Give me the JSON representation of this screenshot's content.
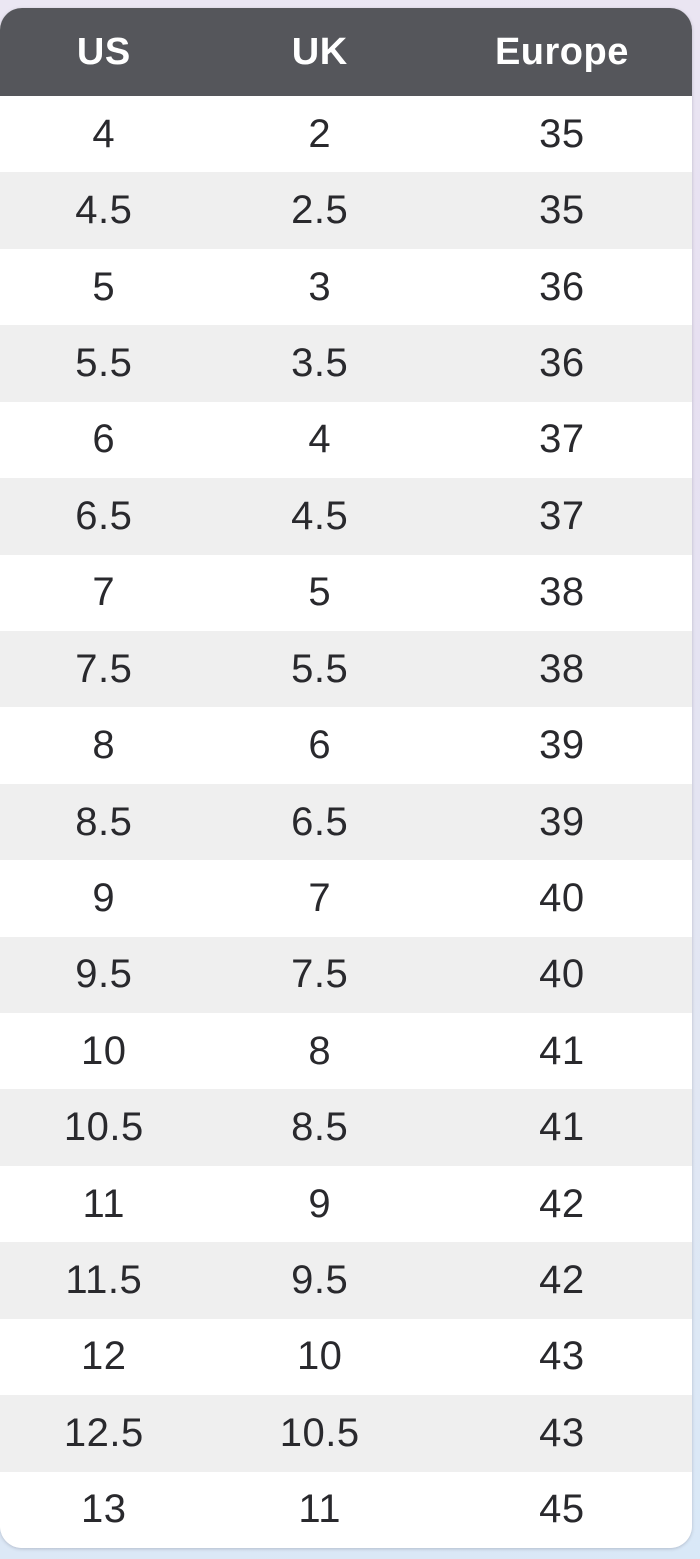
{
  "table": {
    "columns": [
      "US",
      "UK",
      "Europe"
    ],
    "rows": [
      [
        "4",
        "2",
        "35"
      ],
      [
        "4.5",
        "2.5",
        "35"
      ],
      [
        "5",
        "3",
        "36"
      ],
      [
        "5.5",
        "3.5",
        "36"
      ],
      [
        "6",
        "4",
        "37"
      ],
      [
        "6.5",
        "4.5",
        "37"
      ],
      [
        "7",
        "5",
        "38"
      ],
      [
        "7.5",
        "5.5",
        "38"
      ],
      [
        "8",
        "6",
        "39"
      ],
      [
        "8.5",
        "6.5",
        "39"
      ],
      [
        "9",
        "7",
        "40"
      ],
      [
        "9.5",
        "7.5",
        "40"
      ],
      [
        "10",
        "8",
        "41"
      ],
      [
        "10.5",
        "8.5",
        "41"
      ],
      [
        "11",
        "9",
        "42"
      ],
      [
        "11.5",
        "9.5",
        "42"
      ],
      [
        "12",
        "10",
        "43"
      ],
      [
        "12.5",
        "10.5",
        "43"
      ],
      [
        "13",
        "11",
        "45"
      ]
    ],
    "colors": {
      "header_bg": "#55565b",
      "header_text": "#ffffff",
      "row_bg": "#ffffff",
      "row_alt_bg": "#efefef",
      "cell_text": "#29292d"
    }
  }
}
